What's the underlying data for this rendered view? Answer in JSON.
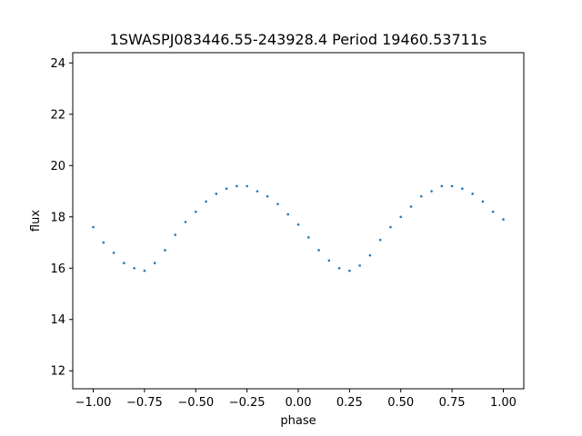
{
  "chart_data": {
    "type": "scatter",
    "title": "1SWASPJ083446.55-243928.4 Period 19460.53711s",
    "xlabel": "phase",
    "ylabel": "flux",
    "xlim": [
      -1.1,
      1.1
    ],
    "ylim": [
      11.3,
      24.4
    ],
    "xticks": [
      -1.0,
      -0.75,
      -0.5,
      -0.25,
      0.0,
      0.25,
      0.5,
      0.75,
      1.0
    ],
    "xtick_labels": [
      "−1.00",
      "−0.75",
      "−0.50",
      "−0.25",
      "0.00",
      "0.25",
      "0.50",
      "0.75",
      "1.00"
    ],
    "yticks": [
      12,
      14,
      16,
      18,
      20,
      22,
      24
    ],
    "ytick_labels": [
      "12",
      "14",
      "16",
      "18",
      "20",
      "22",
      "24"
    ],
    "grid": false,
    "color": "#1f77b4",
    "series": [
      {
        "x": [
          -1.0,
          -0.95,
          -0.9,
          -0.85,
          -0.8,
          -0.75,
          -0.7,
          -0.65,
          -0.6,
          -0.55,
          -0.5,
          -0.45,
          -0.4,
          -0.35,
          -0.3,
          -0.25,
          -0.2,
          -0.15,
          -0.1,
          -0.05,
          0.0,
          0.05,
          0.1,
          0.15,
          0.2,
          0.25,
          0.3,
          0.35,
          0.4,
          0.45,
          0.5,
          0.55,
          0.6,
          0.65,
          0.7,
          0.75,
          0.8,
          0.85,
          0.9,
          0.95,
          1.0
        ],
        "y": [
          17.6,
          17.0,
          16.6,
          16.2,
          16.0,
          15.9,
          16.2,
          16.7,
          17.3,
          17.8,
          18.2,
          18.6,
          18.9,
          19.1,
          19.2,
          19.2,
          19.0,
          18.8,
          18.5,
          18.1,
          17.7,
          17.2,
          16.7,
          16.3,
          16.0,
          15.9,
          16.1,
          16.5,
          17.1,
          17.6,
          18.0,
          18.4,
          18.8,
          19.0,
          19.2,
          19.2,
          19.1,
          18.9,
          18.6,
          18.2,
          17.9
        ]
      }
    ]
  }
}
